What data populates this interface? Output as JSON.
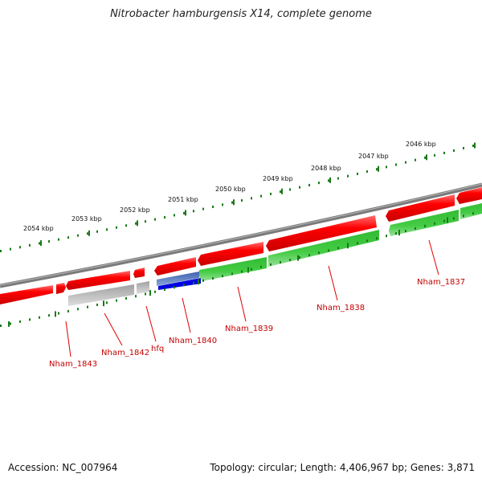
{
  "title": "Nitrobacter hamburgensis X14, complete genome",
  "footer": {
    "accession": "Accession: NC_007964",
    "summary": "Topology: circular; Length: 4,406,967 bp; Genes: 3,871"
  },
  "ruler_labels": [
    "2054 kbp",
    "2053 kbp",
    "2052 kbp",
    "2051 kbp",
    "2050 kbp",
    "2049 kbp",
    "2048 kbp",
    "2047 kbp",
    "2046 kbp"
  ],
  "gene_labels": [
    "Nham_1843",
    "Nham_1842",
    "hfq",
    "Nham_1840",
    "Nham_1839",
    "Nham_1838",
    "Nham_1837"
  ],
  "colors": {
    "forward_strand": "#e00000",
    "reverse_cds": "#22b422",
    "pseudo": "#b4b4b4",
    "rna": "#0000e0",
    "backbone": "#808080",
    "tick": "#1a7a1a",
    "label": "#c40000"
  }
}
